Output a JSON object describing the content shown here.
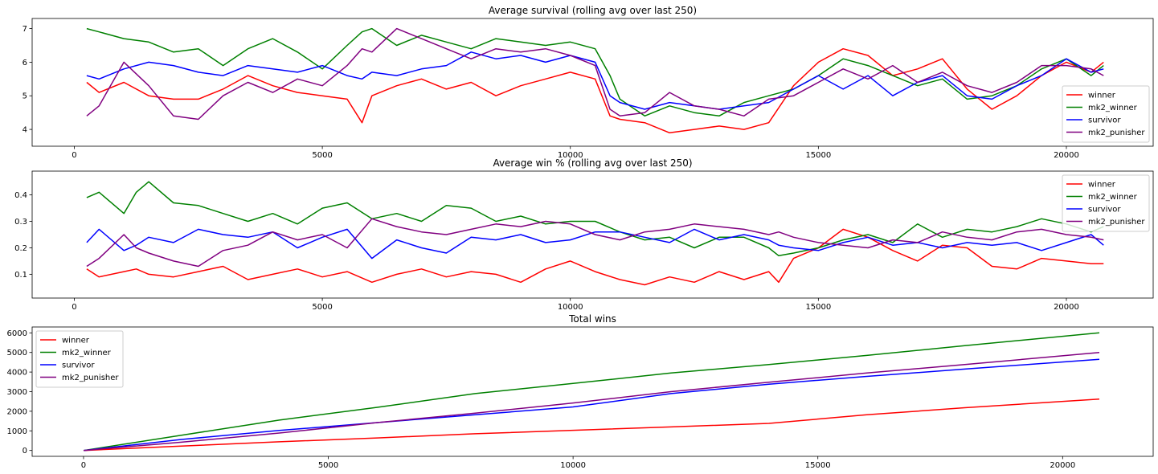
{
  "chart_data": [
    {
      "type": "line",
      "title": "Average survival (rolling avg over last 250)",
      "xlabel": "",
      "ylabel": "",
      "xlim": [
        -850,
        21750
      ],
      "ylim": [
        3.5,
        7.3
      ],
      "xticks": [
        0,
        5000,
        10000,
        15000,
        20000
      ],
      "yticks": [
        4,
        5,
        6,
        7
      ],
      "legend_position": "bottom-right",
      "x": [
        250,
        500,
        1000,
        1500,
        2000,
        2500,
        3000,
        3500,
        4000,
        4500,
        5000,
        5500,
        5800,
        6000,
        6500,
        7000,
        7500,
        8000,
        8500,
        9000,
        9500,
        10000,
        10500,
        10800,
        11000,
        11500,
        12000,
        12500,
        13000,
        13500,
        14000,
        14500,
        15000,
        15500,
        16000,
        16500,
        17000,
        17500,
        18000,
        18500,
        19000,
        19500,
        20000,
        20500,
        20750
      ],
      "series": [
        {
          "name": "winner",
          "color": "#ff0000",
          "values": [
            5.4,
            5.1,
            5.4,
            5.0,
            4.9,
            4.9,
            5.2,
            5.6,
            5.3,
            5.1,
            5.0,
            4.9,
            4.2,
            5.0,
            5.3,
            5.5,
            5.2,
            5.4,
            5.0,
            5.3,
            5.5,
            5.7,
            5.5,
            4.4,
            4.3,
            4.2,
            3.9,
            4.0,
            4.1,
            4.0,
            4.2,
            5.3,
            6.0,
            6.4,
            6.2,
            5.6,
            5.8,
            6.1,
            5.2,
            4.6,
            5.0,
            5.6,
            6.0,
            5.7,
            6.0
          ]
        },
        {
          "name": "mk2_winner",
          "color": "#008000",
          "values": [
            7.0,
            6.9,
            6.7,
            6.6,
            6.3,
            6.4,
            5.9,
            6.4,
            6.7,
            6.3,
            5.8,
            6.5,
            6.9,
            7.0,
            6.5,
            6.8,
            6.6,
            6.4,
            6.7,
            6.6,
            6.5,
            6.6,
            6.4,
            5.6,
            4.9,
            4.4,
            4.7,
            4.5,
            4.4,
            4.8,
            5.0,
            5.2,
            5.6,
            6.1,
            5.9,
            5.6,
            5.3,
            5.5,
            4.9,
            5.0,
            5.3,
            5.8,
            6.1,
            5.6,
            5.9
          ]
        },
        {
          "name": "survivor",
          "color": "#0000ff",
          "values": [
            5.6,
            5.5,
            5.8,
            6.0,
            5.9,
            5.7,
            5.6,
            5.9,
            5.8,
            5.7,
            5.9,
            5.6,
            5.5,
            5.7,
            5.6,
            5.8,
            5.9,
            6.3,
            6.1,
            6.2,
            6.0,
            6.2,
            6.0,
            5.0,
            4.8,
            4.6,
            4.8,
            4.7,
            4.6,
            4.7,
            4.8,
            5.2,
            5.6,
            5.2,
            5.6,
            5.0,
            5.4,
            5.6,
            5.0,
            4.9,
            5.3,
            5.6,
            6.1,
            5.7,
            5.8
          ]
        },
        {
          "name": "mk2_punisher",
          "color": "#800080",
          "values": [
            4.4,
            4.7,
            6.0,
            5.3,
            4.4,
            4.3,
            5.0,
            5.4,
            5.1,
            5.5,
            5.3,
            5.9,
            6.4,
            6.3,
            7.0,
            6.7,
            6.4,
            6.1,
            6.4,
            6.3,
            6.4,
            6.2,
            5.9,
            4.6,
            4.4,
            4.5,
            5.1,
            4.7,
            4.6,
            4.4,
            4.9,
            5.0,
            5.4,
            5.8,
            5.5,
            5.9,
            5.4,
            5.7,
            5.3,
            5.1,
            5.4,
            5.9,
            5.9,
            5.8,
            5.6
          ]
        }
      ]
    },
    {
      "type": "line",
      "title": "Average win % (rolling avg over last 250)",
      "xlabel": "",
      "ylabel": "",
      "xlim": [
        -850,
        21750
      ],
      "ylim": [
        0.01,
        0.49
      ],
      "xticks": [
        0,
        5000,
        10000,
        15000,
        20000
      ],
      "yticks": [
        0.1,
        0.2,
        0.3,
        0.4
      ],
      "legend_position": "top-right",
      "x": [
        250,
        500,
        1000,
        1250,
        1500,
        2000,
        2500,
        3000,
        3500,
        4000,
        4500,
        5000,
        5500,
        6000,
        6500,
        7000,
        7500,
        8000,
        8500,
        9000,
        9500,
        10000,
        10500,
        11000,
        11500,
        12000,
        12500,
        13000,
        13500,
        14000,
        14200,
        14500,
        15000,
        15500,
        16000,
        16500,
        17000,
        17500,
        18000,
        18500,
        19000,
        19500,
        20000,
        20500,
        20750
      ],
      "series": [
        {
          "name": "winner",
          "color": "#ff0000",
          "values": [
            0.12,
            0.09,
            0.11,
            0.12,
            0.1,
            0.09,
            0.11,
            0.13,
            0.08,
            0.1,
            0.12,
            0.09,
            0.11,
            0.07,
            0.1,
            0.12,
            0.09,
            0.11,
            0.1,
            0.07,
            0.12,
            0.15,
            0.11,
            0.08,
            0.06,
            0.09,
            0.07,
            0.11,
            0.08,
            0.11,
            0.07,
            0.16,
            0.2,
            0.27,
            0.24,
            0.19,
            0.15,
            0.21,
            0.2,
            0.13,
            0.12,
            0.16,
            0.15,
            0.14,
            0.14
          ]
        },
        {
          "name": "mk2_winner",
          "color": "#008000",
          "values": [
            0.39,
            0.41,
            0.33,
            0.41,
            0.45,
            0.37,
            0.36,
            0.33,
            0.3,
            0.33,
            0.29,
            0.35,
            0.37,
            0.31,
            0.33,
            0.3,
            0.36,
            0.35,
            0.3,
            0.32,
            0.29,
            0.3,
            0.3,
            0.26,
            0.23,
            0.24,
            0.2,
            0.24,
            0.24,
            0.2,
            0.17,
            0.18,
            0.2,
            0.23,
            0.25,
            0.22,
            0.29,
            0.24,
            0.27,
            0.26,
            0.28,
            0.31,
            0.29,
            0.26,
            0.28
          ]
        },
        {
          "name": "survivor",
          "color": "#0000ff",
          "values": [
            0.22,
            0.27,
            0.19,
            0.21,
            0.24,
            0.22,
            0.27,
            0.25,
            0.24,
            0.26,
            0.2,
            0.24,
            0.27,
            0.16,
            0.23,
            0.2,
            0.18,
            0.24,
            0.23,
            0.25,
            0.22,
            0.23,
            0.26,
            0.26,
            0.24,
            0.22,
            0.27,
            0.23,
            0.25,
            0.23,
            0.21,
            0.2,
            0.19,
            0.22,
            0.24,
            0.21,
            0.22,
            0.2,
            0.22,
            0.21,
            0.22,
            0.19,
            0.22,
            0.25,
            0.21
          ]
        },
        {
          "name": "mk2_punisher",
          "color": "#800080",
          "values": [
            0.13,
            0.16,
            0.25,
            0.2,
            0.18,
            0.15,
            0.13,
            0.19,
            0.21,
            0.26,
            0.23,
            0.25,
            0.2,
            0.31,
            0.28,
            0.26,
            0.25,
            0.27,
            0.29,
            0.28,
            0.3,
            0.29,
            0.25,
            0.23,
            0.26,
            0.27,
            0.29,
            0.28,
            0.27,
            0.25,
            0.26,
            0.24,
            0.22,
            0.21,
            0.2,
            0.23,
            0.22,
            0.26,
            0.24,
            0.23,
            0.26,
            0.27,
            0.25,
            0.24,
            0.23
          ]
        }
      ]
    },
    {
      "type": "line",
      "title": "Total wins",
      "xlabel": "",
      "ylabel": "",
      "xlim": [
        -1050,
        21850
      ],
      "ylim": [
        -300,
        6300
      ],
      "xticks": [
        0,
        5000,
        10000,
        15000,
        20000
      ],
      "yticks": [
        0,
        1000,
        2000,
        3000,
        4000,
        5000,
        6000
      ],
      "legend_position": "top-left",
      "x": [
        0,
        2000,
        4000,
        6000,
        8000,
        10000,
        12000,
        14000,
        16000,
        18000,
        20750
      ],
      "series": [
        {
          "name": "winner",
          "color": "#ff0000",
          "values": [
            0,
            220,
            440,
            640,
            850,
            1030,
            1200,
            1380,
            1820,
            2180,
            2620
          ]
        },
        {
          "name": "mk2_winner",
          "color": "#008000",
          "values": [
            0,
            780,
            1550,
            2200,
            2900,
            3420,
            3950,
            4380,
            4850,
            5350,
            6000
          ]
        },
        {
          "name": "survivor",
          "color": "#0000ff",
          "values": [
            0,
            560,
            1020,
            1420,
            1820,
            2220,
            2900,
            3380,
            3780,
            4150,
            4650
          ]
        },
        {
          "name": "mk2_punisher",
          "color": "#800080",
          "values": [
            0,
            420,
            890,
            1420,
            1900,
            2420,
            3000,
            3480,
            3950,
            4380,
            5000
          ]
        }
      ]
    }
  ]
}
